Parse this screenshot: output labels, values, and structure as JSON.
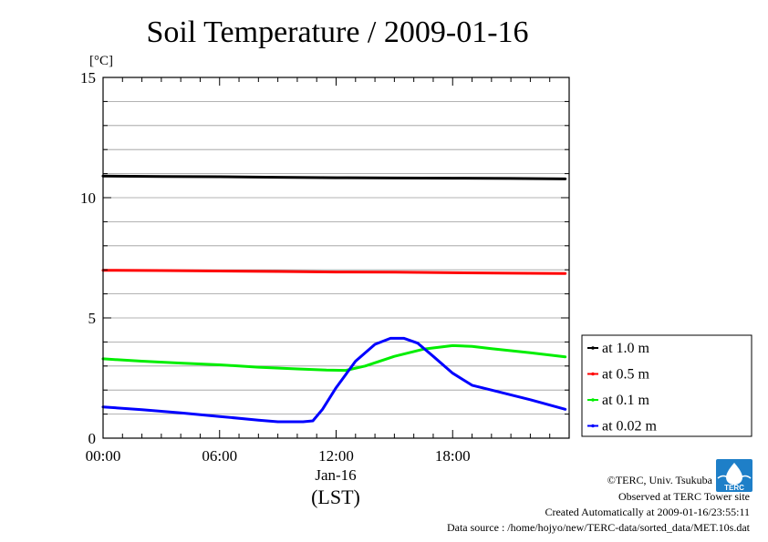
{
  "chart_data": {
    "type": "line",
    "title": "Soil Temperature / 2009-01-16",
    "ylabel": "[°C]",
    "xlabel": "(LST)",
    "date_label": "Jan-16",
    "ylim": [
      0,
      15
    ],
    "xlim": [
      0,
      24
    ],
    "yticks": [
      "0",
      "5",
      "10",
      "15"
    ],
    "xticks": [
      "00:00",
      "06:00",
      "12:00",
      "18:00"
    ],
    "grid": true,
    "legend_position": "outside-right",
    "series": [
      {
        "name": "at 1.0 m",
        "color": "#000000",
        "x": [
          0,
          3,
          6,
          9,
          12,
          15,
          18,
          21,
          23.8
        ],
        "y": [
          10.9,
          10.88,
          10.87,
          10.85,
          10.83,
          10.82,
          10.81,
          10.8,
          10.78
        ]
      },
      {
        "name": "at 0.5 m",
        "color": "#ff0000",
        "x": [
          0,
          3,
          6,
          9,
          12,
          15,
          18,
          21,
          23.8
        ],
        "y": [
          6.98,
          6.97,
          6.95,
          6.93,
          6.91,
          6.9,
          6.88,
          6.86,
          6.85
        ]
      },
      {
        "name": "at 0.1 m",
        "color": "#00ee00",
        "x": [
          0,
          2,
          4,
          6,
          8,
          10,
          11.5,
          12.5,
          13.5,
          15,
          16.5,
          18,
          19,
          20,
          22,
          23.8
        ],
        "y": [
          3.3,
          3.2,
          3.12,
          3.05,
          2.95,
          2.88,
          2.83,
          2.82,
          3.0,
          3.4,
          3.7,
          3.85,
          3.82,
          3.72,
          3.55,
          3.38
        ]
      },
      {
        "name": "at 0.02 m",
        "color": "#0000ff",
        "x": [
          0,
          2,
          4,
          6,
          8,
          9,
          10.3,
          10.8,
          11.3,
          12,
          13,
          14,
          14.8,
          15.5,
          16.2,
          17,
          18,
          19,
          20,
          22,
          23.8
        ],
        "y": [
          1.3,
          1.18,
          1.05,
          0.9,
          0.75,
          0.68,
          0.68,
          0.72,
          1.2,
          2.1,
          3.2,
          3.9,
          4.15,
          4.15,
          3.95,
          3.4,
          2.7,
          2.2,
          2.0,
          1.6,
          1.2
        ]
      }
    ]
  },
  "footer": {
    "copyright": "©TERC, Univ. Tsukuba",
    "observed": "Observed at TERC Tower site",
    "created": "Created Automatically at 2009-01-16/23:55:11",
    "source": "Data source : /home/hojyo/new/TERC-data/sorted_data/MET.10s.dat",
    "logo_text": "TERC",
    "logo_color": "#1e7fc8"
  }
}
